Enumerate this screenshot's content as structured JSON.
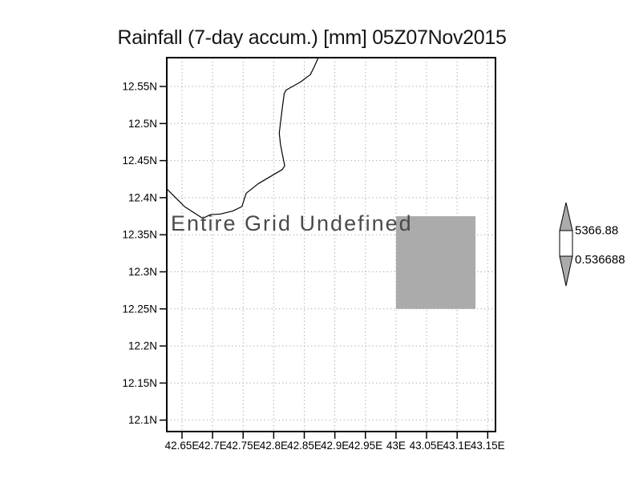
{
  "title": "Rainfall (7-day accum.) [mm] 05Z07Nov2015",
  "annotation": "Entire Grid Undefined",
  "colors": {
    "undefined_fill": "#ababab",
    "grid": "#b3b3b3",
    "frame": "#000000",
    "coastline": "#000000",
    "annotation_text": "#4a4a4a"
  },
  "chart_data": {
    "type": "heatmap",
    "title": "Rainfall (7-day accum.) [mm] 05Z07Nov2015",
    "note": "Entire Grid Undefined",
    "grid": "dotted",
    "values": "all undefined (no rainfall data plotted)",
    "x_axis": {
      "tick_values": [
        42.65,
        42.7,
        42.75,
        42.8,
        42.85,
        42.9,
        42.95,
        43.0,
        43.05,
        43.1,
        43.15
      ],
      "tick_labels": [
        "42.65E",
        "42.7E",
        "42.75E",
        "42.8E",
        "42.85E",
        "42.9E",
        "42.95E",
        "43E",
        "43.05E",
        "43.1E",
        "43.15E"
      ],
      "range_deg": [
        42.625,
        43.163
      ]
    },
    "y_axis": {
      "tick_values": [
        12.55,
        12.5,
        12.45,
        12.4,
        12.35,
        12.3,
        12.25,
        12.2,
        12.15,
        12.1
      ],
      "tick_labels": [
        "12.55N",
        "12.5N",
        "12.45N",
        "12.4N",
        "12.35N",
        "12.3N",
        "12.25N",
        "12.2N",
        "12.15N",
        "12.1N"
      ],
      "range_deg": [
        12.083,
        12.589
      ]
    },
    "undefined_cell_deg": {
      "lon_min": 43.0,
      "lon_max": 43.13,
      "lat_min": 12.25,
      "lat_max": 12.375
    },
    "coastline_lonlat": [
      [
        42.625,
        12.412
      ],
      [
        42.654,
        12.388
      ],
      [
        42.684,
        12.372
      ],
      [
        42.696,
        12.377
      ],
      [
        42.713,
        12.378
      ],
      [
        42.733,
        12.382
      ],
      [
        42.748,
        12.388
      ],
      [
        42.755,
        12.406
      ],
      [
        42.775,
        12.419
      ],
      [
        42.814,
        12.438
      ],
      [
        42.818,
        12.443
      ],
      [
        42.814,
        12.459
      ],
      [
        42.811,
        12.472
      ],
      [
        42.809,
        12.487
      ],
      [
        42.811,
        12.501
      ],
      [
        42.814,
        12.521
      ],
      [
        42.817,
        12.54
      ],
      [
        42.82,
        12.545
      ],
      [
        42.844,
        12.556
      ],
      [
        42.86,
        12.566
      ],
      [
        42.866,
        12.576
      ],
      [
        42.873,
        12.589
      ]
    ],
    "colorbar": {
      "max_label": "5366.88",
      "min_label": "0.536688",
      "fill_color": "#ababab"
    }
  }
}
